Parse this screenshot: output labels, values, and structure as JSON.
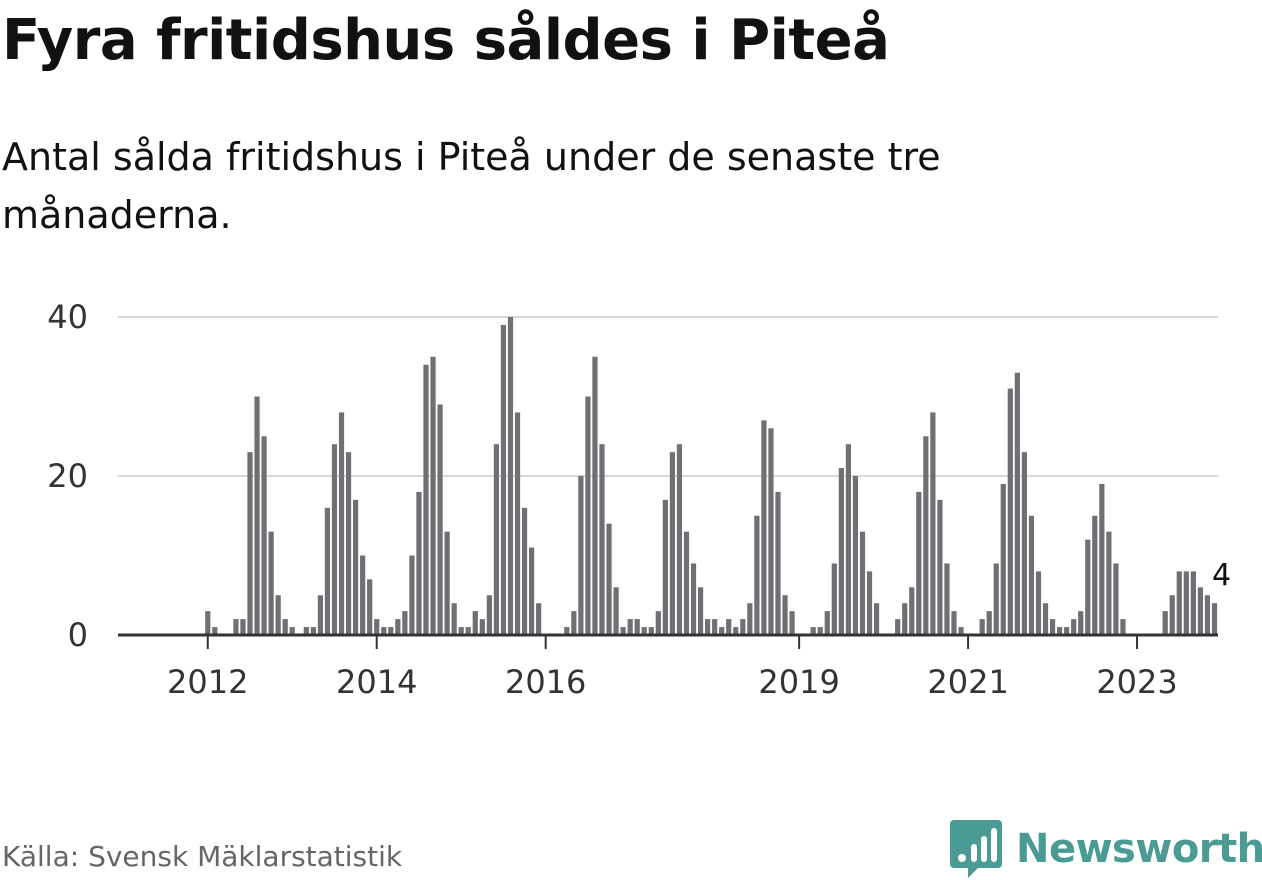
{
  "title": "Fyra fritidshus såldes i Piteå",
  "subtitle": "Antal sålda fritidshus i Piteå under de senaste tre månaderna.",
  "source": "Källa: Svensk Mäklarstatistik",
  "brand": {
    "name": "Newsworthy",
    "color": "#4a9b94"
  },
  "chart_data": {
    "type": "bar",
    "title": "Fyra fritidshus såldes i Piteå",
    "xlabel": "",
    "ylabel": "",
    "ylim": [
      0,
      40
    ],
    "yticks": [
      0,
      20,
      40
    ],
    "grid": true,
    "start_period": "2011-10",
    "xtick_labels": [
      {
        "label": "2012",
        "index": 6
      },
      {
        "label": "2014",
        "index": 30
      },
      {
        "label": "2016",
        "index": 54
      },
      {
        "label": "2019",
        "index": 90
      },
      {
        "label": "2021",
        "index": 114
      },
      {
        "label": "2023",
        "index": 138
      }
    ],
    "values": [
      0,
      0,
      0,
      0,
      0,
      0,
      3,
      1,
      0,
      0,
      2,
      2,
      23,
      30,
      25,
      13,
      5,
      2,
      1,
      0,
      1,
      1,
      5,
      16,
      24,
      28,
      23,
      17,
      10,
      7,
      2,
      1,
      1,
      2,
      3,
      10,
      18,
      34,
      35,
      29,
      13,
      4,
      1,
      1,
      3,
      2,
      5,
      24,
      39,
      40,
      28,
      16,
      11,
      4,
      0,
      0,
      0,
      1,
      3,
      20,
      30,
      35,
      24,
      14,
      6,
      1,
      2,
      2,
      1,
      1,
      3,
      17,
      23,
      24,
      13,
      9,
      6,
      2,
      2,
      1,
      2,
      1,
      2,
      4,
      15,
      27,
      26,
      18,
      5,
      3,
      0,
      0,
      1,
      1,
      3,
      9,
      21,
      24,
      20,
      13,
      8,
      4,
      0,
      0,
      2,
      4,
      6,
      18,
      25,
      28,
      17,
      9,
      3,
      1,
      0,
      0,
      2,
      3,
      9,
      19,
      31,
      33,
      23,
      15,
      8,
      4,
      2,
      1,
      1,
      2,
      3,
      12,
      15,
      19,
      13,
      9,
      2,
      0,
      0,
      0,
      0,
      0,
      3,
      5,
      8,
      8,
      8,
      6,
      5,
      4
    ],
    "highlight": {
      "index": 150,
      "value": 4,
      "label": "4",
      "color": "#1a9e93"
    },
    "bar_color": "#6f6f74",
    "axis_color": "#333333",
    "grid_color": "#d9d9d9"
  }
}
